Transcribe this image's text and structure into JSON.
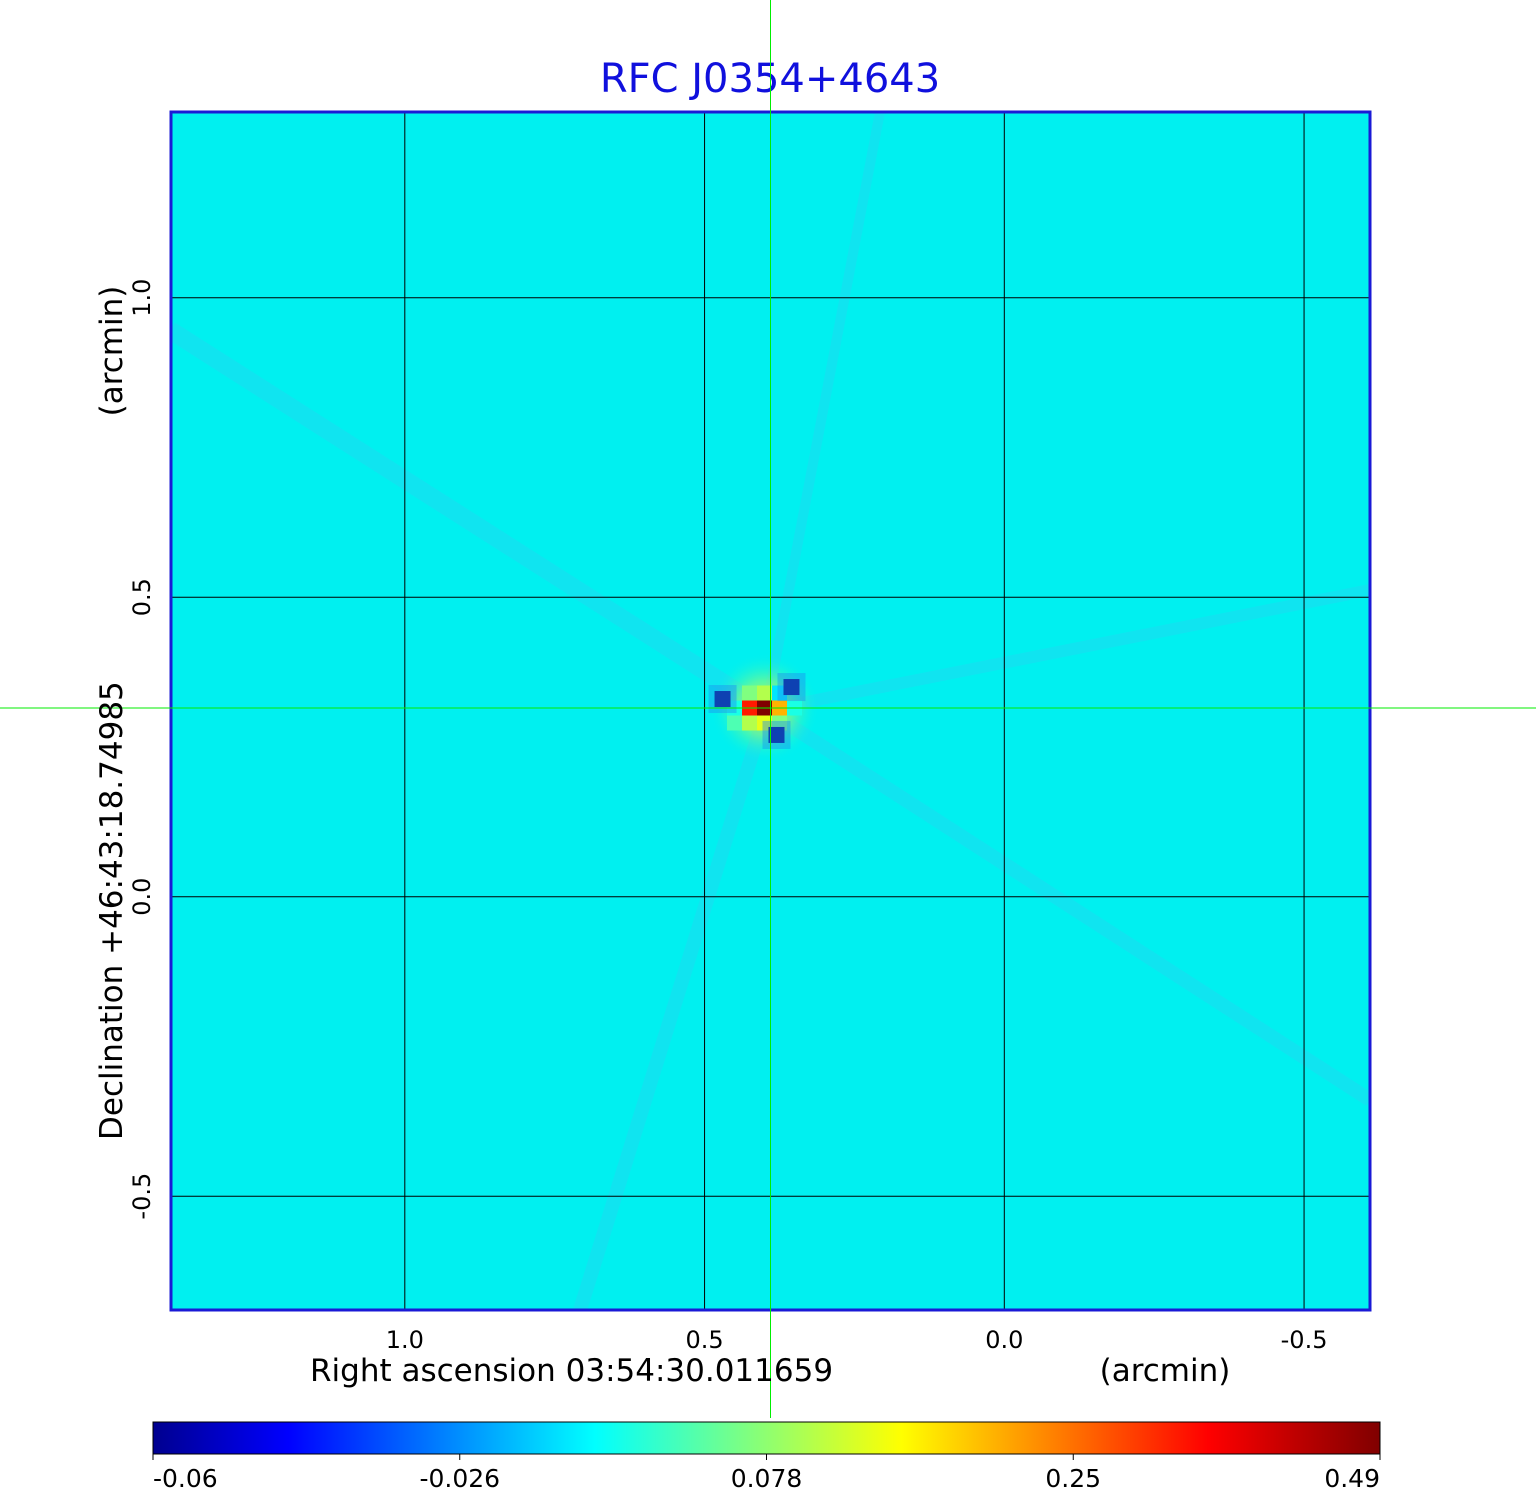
{
  "chart_data": {
    "type": "heatmap",
    "title": "RFC J0354+4643",
    "xlabel": "Right ascension  03:54:30.011659",
    "xlabel_unit": "(arcmin)",
    "ylabel": "Declination  +46:43:18.74985",
    "ylabel_unit": "(arcmin)",
    "x_axis": {
      "reversed": true,
      "ticks": [
        1.0,
        0.5,
        0.0,
        -0.5
      ],
      "tick_labels": [
        "1.0",
        "0.5",
        "0.0",
        "-0.5"
      ],
      "range": [
        1.39,
        -0.61
      ]
    },
    "y_axis": {
      "ticks": [
        1.0,
        0.5,
        0.0,
        -0.5
      ],
      "tick_labels": [
        "1.0",
        "0.5",
        "0.0",
        "-0.5"
      ],
      "range": [
        -0.69,
        1.31
      ]
    },
    "grid": true,
    "crosshair": {
      "x": 0.39,
      "y": 0.315
    },
    "colorbar": {
      "position": "bottom",
      "colormap": "jet",
      "tick_labels": [
        "-0.06",
        "-0.026",
        "0.078",
        "0.25",
        "0.49"
      ],
      "range": [
        -0.06,
        0.49
      ]
    },
    "background_value": 0.0,
    "peak": {
      "x": 0.4,
      "y": 0.315,
      "value": 0.49
    },
    "features": [
      {
        "x": 0.47,
        "y": 0.33,
        "value": -0.06
      },
      {
        "x": 0.355,
        "y": 0.35,
        "value": -0.06
      },
      {
        "x": 0.38,
        "y": 0.27,
        "value": -0.06
      }
    ],
    "colors": {
      "title": "#1010dd",
      "frame": "#1a1ad6",
      "grid": "#000000",
      "crosshair": "#00ee00",
      "background": "#00f0f0"
    }
  }
}
